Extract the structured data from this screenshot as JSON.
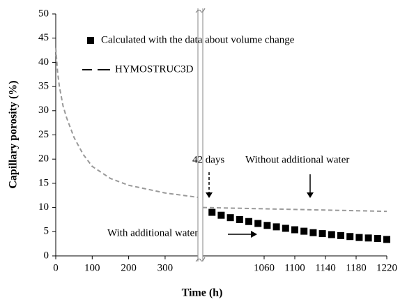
{
  "chart_data": {
    "type": "line",
    "xlabel": "Time (h)",
    "ylabel": "Capillary  porosity (%)",
    "ylim": [
      0,
      50
    ],
    "yticks": [
      0,
      5,
      10,
      15,
      20,
      25,
      30,
      35,
      40,
      45,
      50
    ],
    "x_segments": [
      {
        "xlim": [
          0,
          390
        ],
        "xticks": [
          0,
          100,
          200,
          300
        ]
      },
      {
        "xlim": [
          980,
          1220
        ],
        "xticks": [
          1060,
          1100,
          1140,
          1180,
          1220
        ]
      }
    ],
    "series": [
      {
        "name": "Calculated with the data about volume change",
        "color": "#000000",
        "marker": "square",
        "x": [
          992,
          1004,
          1016,
          1028,
          1040,
          1052,
          1064,
          1076,
          1088,
          1100,
          1112,
          1124,
          1136,
          1148,
          1160,
          1172,
          1184,
          1196,
          1208,
          1220
        ],
        "values": [
          9.0,
          8.4,
          7.9,
          7.5,
          7.1,
          6.7,
          6.3,
          6.0,
          5.7,
          5.4,
          5.1,
          4.8,
          4.6,
          4.4,
          4.2,
          4.0,
          3.8,
          3.7,
          3.6,
          3.4
        ]
      },
      {
        "name": "HYMOSTRUC3D",
        "color": "#999999",
        "marker": "dashed",
        "x": [
          0,
          5,
          10,
          20,
          30,
          50,
          75,
          100,
          150,
          200,
          250,
          300,
          350,
          390,
          980,
          1100,
          1220
        ],
        "values": [
          43,
          38,
          35,
          31,
          28.5,
          24.5,
          21,
          18.5,
          16,
          14.6,
          13.8,
          13.0,
          12.5,
          12.1,
          10.0,
          9.6,
          9.2
        ]
      }
    ],
    "annotations": [
      "42 days",
      "Without additional water",
      "With additional water"
    ]
  }
}
